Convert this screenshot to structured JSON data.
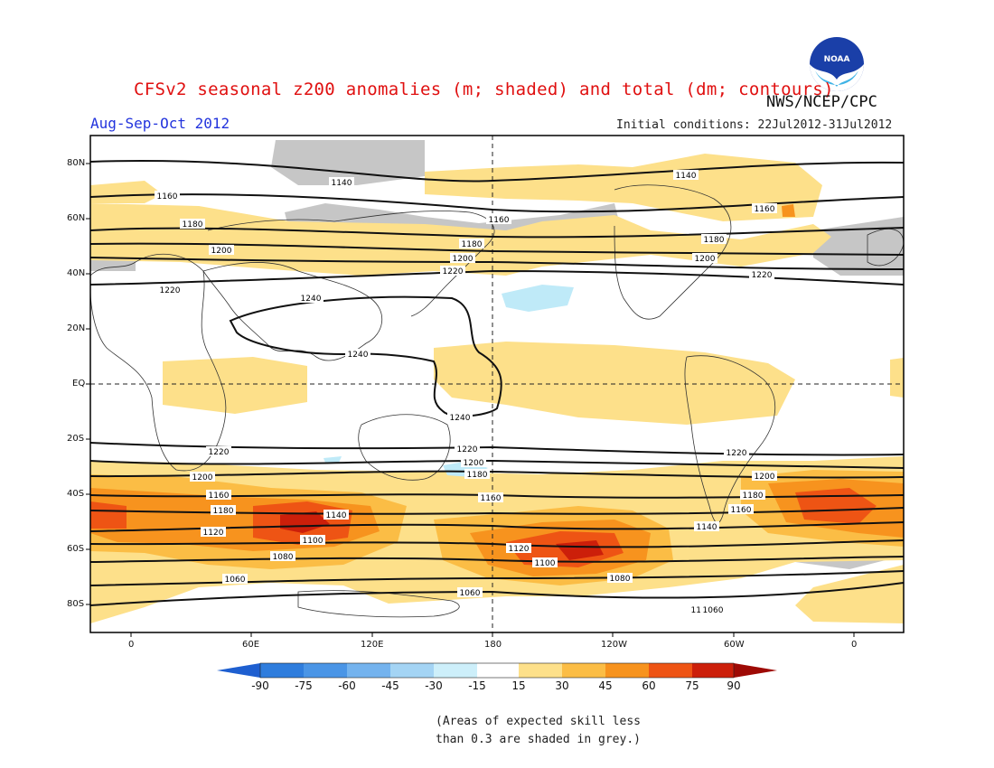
{
  "header": {
    "title": "CFSv2 seasonal z200 anomalies (m; shaded) and total (dm; contours)",
    "agency": "NWS/NCEP/CPC",
    "season": "Aug-Sep-Oct 2012",
    "initial_conditions": "Initial conditions: 22Jul2012-31Jul2012"
  },
  "logo": {
    "icon": "noaa-logo-icon",
    "text": "NOAA"
  },
  "axes": {
    "lat_labels": [
      "80N",
      "60N",
      "40N",
      "20N",
      "EQ",
      "20S",
      "40S",
      "60S",
      "80S"
    ],
    "lon_labels": [
      "0",
      "60E",
      "120E",
      "180",
      "120W",
      "60W",
      "0"
    ]
  },
  "colorbar": {
    "ticks": [
      "-90",
      "-75",
      "-60",
      "-45",
      "-30",
      "-15",
      "15",
      "30",
      "45",
      "60",
      "75",
      "90"
    ],
    "colors": [
      "#1e5fd0",
      "#2f7ddd",
      "#4a95e6",
      "#74b3ee",
      "#a4d4f4",
      "#cdeffa",
      "#ffffff",
      "#fde08a",
      "#fbbd45",
      "#f7931e",
      "#ee5414",
      "#cc1f0a",
      "#9e0a05"
    ]
  },
  "contour_labels": [
    "1140",
    "1160",
    "1180",
    "1200",
    "1220",
    "1240",
    "1240",
    "1240",
    "1220",
    "1200",
    "1180",
    "1160",
    "1140",
    "1120",
    "1100",
    "1080",
    "1060",
    "1160",
    "1180",
    "1200",
    "1220",
    "1140",
    "1160",
    "1180",
    "1200",
    "1220",
    "1220",
    "1200",
    "1180",
    "1160",
    "1140",
    "1120",
    "1100",
    "1080",
    "1060",
    "1160",
    "1180",
    "1200",
    "1220",
    "1160",
    "1060"
  ],
  "footnote": {
    "line1": "(Areas of expected skill less",
    "line2": "than 0.3 are shaded in grey.)"
  }
}
